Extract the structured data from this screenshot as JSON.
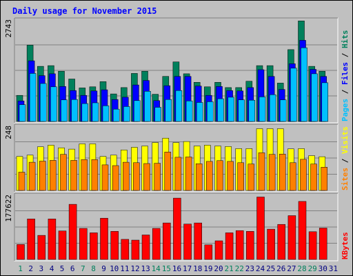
{
  "title": "Daily usage for November 2015",
  "colors": {
    "background": "#c0c0c0",
    "title": "#0000ff",
    "hits": "#00805c",
    "files": "#0000ff",
    "pages": "#00c0ff",
    "visits": "#ffff00",
    "sites": "#ff8000",
    "kbytes": "#ff0000",
    "weekend_day": "#00805c",
    "weekday": "#000080",
    "divider": "#000000"
  },
  "chart_data": [
    {
      "type": "bar",
      "panel": "hits-files-pages",
      "ymax_label": "2743",
      "ymax": 2743,
      "side_labels": [
        "Pages",
        "Files",
        "Hits"
      ],
      "separator": " / ",
      "categories": [
        "1",
        "2",
        "3",
        "4",
        "5",
        "6",
        "7",
        "8",
        "9",
        "10",
        "11",
        "12",
        "13",
        "14",
        "15",
        "16",
        "17",
        "18",
        "19",
        "20",
        "21",
        "22",
        "23",
        "24",
        "25",
        "26",
        "27",
        "28",
        "29",
        "30",
        "31"
      ],
      "series": [
        {
          "name": "Hits",
          "color": "#00805c",
          "values": [
            700,
            2050,
            1480,
            1500,
            1350,
            1140,
            900,
            930,
            1070,
            740,
            910,
            1290,
            1350,
            730,
            1210,
            1600,
            1280,
            1050,
            930,
            1050,
            910,
            910,
            1080,
            1500,
            1500,
            1030,
            1930,
            2700,
            1480,
            1350,
            0
          ]
        },
        {
          "name": "Files",
          "color": "#0000ff",
          "values": [
            550,
            1630,
            1230,
            1280,
            940,
            830,
            700,
            820,
            850,
            590,
            650,
            980,
            1100,
            560,
            960,
            1210,
            1210,
            950,
            700,
            940,
            830,
            820,
            910,
            1390,
            1210,
            860,
            1550,
            2180,
            1400,
            1210,
            0
          ]
        },
        {
          "name": "Pages",
          "color": "#00c0ff",
          "values": [
            450,
            1290,
            1020,
            930,
            580,
            590,
            480,
            500,
            420,
            330,
            400,
            560,
            810,
            380,
            590,
            830,
            550,
            510,
            530,
            610,
            650,
            580,
            570,
            660,
            720,
            580,
            1430,
            1980,
            1280,
            1040,
            0
          ]
        }
      ]
    },
    {
      "type": "bar",
      "panel": "visits-sites",
      "ymax_label": "248",
      "ymax": 248,
      "side_labels": [
        "Sites",
        "Visits"
      ],
      "separator": " / ",
      "categories": [
        "1",
        "2",
        "3",
        "4",
        "5",
        "6",
        "7",
        "8",
        "9",
        "10",
        "11",
        "12",
        "13",
        "14",
        "15",
        "16",
        "17",
        "18",
        "19",
        "20",
        "21",
        "22",
        "23",
        "24",
        "25",
        "26",
        "27",
        "28",
        "29",
        "30",
        "31"
      ],
      "series": [
        {
          "name": "Visits",
          "color": "#ffff00",
          "values": [
            130,
            135,
            167,
            173,
            163,
            158,
            178,
            178,
            130,
            135,
            155,
            165,
            170,
            183,
            200,
            183,
            187,
            170,
            173,
            170,
            168,
            160,
            160,
            236,
            236,
            236,
            159,
            160,
            133,
            129,
            0
          ]
        },
        {
          "name": "Sites",
          "color": "#ff8000",
          "values": [
            70,
            108,
            112,
            115,
            138,
            115,
            118,
            118,
            98,
            95,
            108,
            106,
            103,
            104,
            147,
            127,
            128,
            102,
            111,
            114,
            111,
            106,
            101,
            144,
            138,
            139,
            106,
            119,
            101,
            89,
            0
          ]
        }
      ]
    },
    {
      "type": "bar",
      "panel": "kbytes",
      "ymax_label": "177622",
      "ymax": 177622,
      "side_labels": [
        "KBytes"
      ],
      "separator": "",
      "categories": [
        "1",
        "2",
        "3",
        "4",
        "5",
        "6",
        "7",
        "8",
        "9",
        "10",
        "11",
        "12",
        "13",
        "14",
        "15",
        "16",
        "17",
        "18",
        "19",
        "20",
        "21",
        "22",
        "23",
        "24",
        "25",
        "26",
        "27",
        "28",
        "29",
        "30",
        "31"
      ],
      "series": [
        {
          "name": "KBytes",
          "color": "#ff0000",
          "values": [
            41000,
            111000,
            66000,
            111000,
            78000,
            151000,
            85000,
            73000,
            113000,
            77000,
            55000,
            53000,
            67000,
            85000,
            100000,
            168000,
            97000,
            100000,
            40000,
            51000,
            73000,
            79000,
            77000,
            171000,
            83000,
            96000,
            120000,
            159000,
            76000,
            86000,
            0
          ]
        }
      ]
    }
  ],
  "day_labels": {
    "days": [
      "1",
      "2",
      "3",
      "4",
      "5",
      "6",
      "7",
      "8",
      "9",
      "10",
      "11",
      "12",
      "13",
      "14",
      "15",
      "16",
      "17",
      "18",
      "19",
      "20",
      "21",
      "22",
      "23",
      "24",
      "25",
      "26",
      "27",
      "28",
      "29",
      "30",
      "31"
    ],
    "weekend": [
      1,
      7,
      8,
      14,
      15,
      21,
      22,
      28,
      29
    ]
  }
}
